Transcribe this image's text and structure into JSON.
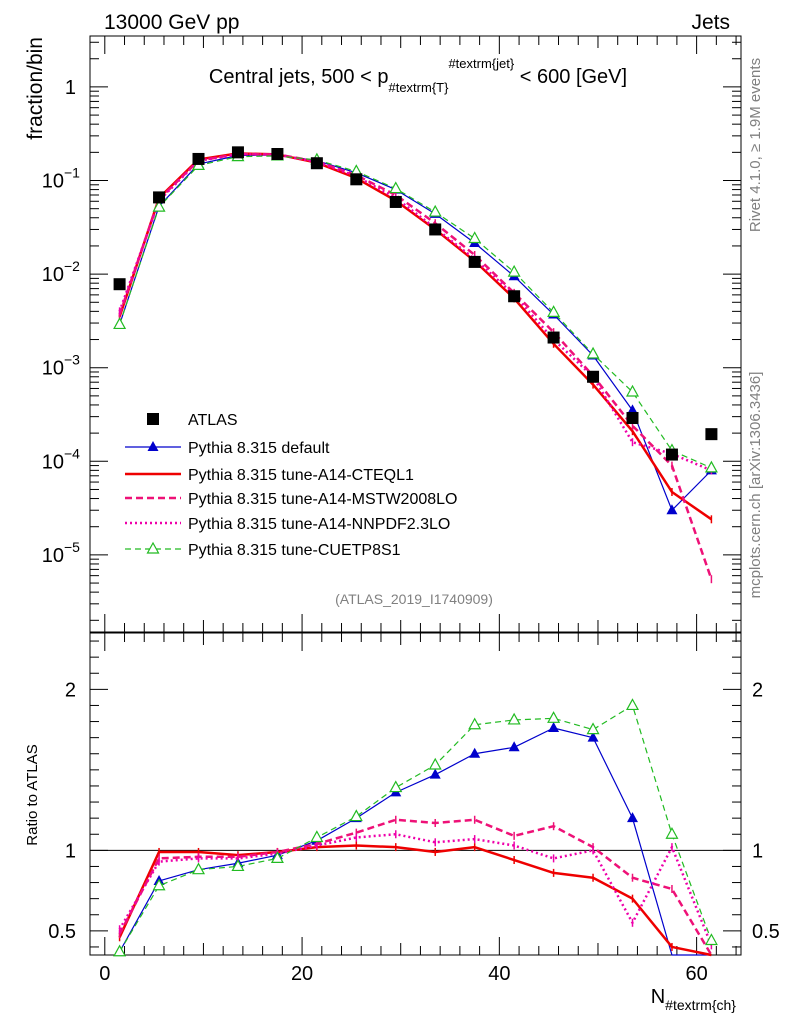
{
  "header": {
    "left": "13000 GeV pp",
    "right": "Jets",
    "side_rivet": "Rivet 4.1.0, ≥ 1.9M events",
    "side_mcplots": "mcplots.cern.ch [arXiv:1306.3436]",
    "analysis": "(ATLAS_2019_I1740909)"
  },
  "colors": {
    "data": "#000000",
    "default": "#0000cc",
    "cteql1": "#ee0000",
    "mstw": "#ee1177",
    "nnpdf": "#ee00aa",
    "cuetp8s1": "#22bb22"
  },
  "chart_data": [
    {
      "type": "line",
      "title": "Central jets, 500 < p_{#textrm{T}}^{#textrm{jet}} < 600 [GeV]",
      "title_parts": {
        "pre": "Central jets, 500 < p",
        "sub": "#textrm{T}",
        "sup": "#textrm{jet}",
        "post": " < 600 [GeV]"
      },
      "xlabel": "N_{#textrm{ch}}",
      "xlabel_parts": {
        "main": "N",
        "sub": "#textrm{ch}"
      },
      "ylabel": "fraction/bin",
      "yscale": "log",
      "ylim": [
        1.5e-06,
        3.5
      ],
      "xlim": [
        -1.5,
        64.5
      ],
      "x": [
        1.5,
        5.5,
        9.5,
        13.5,
        17.5,
        21.5,
        25.5,
        29.5,
        33.5,
        37.5,
        41.5,
        45.5,
        49.5,
        53.5,
        57.5,
        61.5
      ],
      "y_ticks": [
        {
          "value": 1e-05,
          "base": "10",
          "exp": "−5"
        },
        {
          "value": 0.0001,
          "base": "10",
          "exp": "−4"
        },
        {
          "value": 0.001,
          "base": "10",
          "exp": "−3"
        },
        {
          "value": 0.01,
          "base": "10",
          "exp": "−2"
        },
        {
          "value": 0.1,
          "base": "10",
          "exp": "−1"
        },
        {
          "value": 1,
          "base": "1",
          "exp": ""
        }
      ],
      "series": [
        {
          "name": "ATLAS",
          "key": "data",
          "style": "square",
          "values": [
            0.0078,
            0.066,
            0.17,
            0.2,
            0.192,
            0.153,
            0.103,
            0.059,
            0.03,
            0.0135,
            0.0058,
            0.0021,
            0.0008,
            0.00029,
            0.000118,
            0.000195
          ]
        },
        {
          "name": "Pythia 8.315 default",
          "key": "default",
          "style": "solid-triangle",
          "values": [
            0.0029,
            0.053,
            0.15,
            0.185,
            0.187,
            0.163,
            0.121,
            0.08,
            0.044,
            0.0215,
            0.0095,
            0.0037,
            0.00135,
            0.00035,
            3e-05,
            8e-05
          ]
        },
        {
          "name": "Pythia 8.315 tune-A14-CTEQL1",
          "key": "cteql1",
          "style": "solid",
          "values": [
            0.0035,
            0.065,
            0.168,
            0.195,
            0.19,
            0.155,
            0.106,
            0.061,
            0.03,
            0.0138,
            0.0055,
            0.0018,
            0.00066,
            0.00021,
            4.7e-05,
            2.4e-05
          ]
        },
        {
          "name": "Pythia 8.315 tune-A14-MSTW2008LO",
          "key": "mstw",
          "style": "dashed",
          "values": [
            0.0037,
            0.063,
            0.163,
            0.192,
            0.19,
            0.16,
            0.114,
            0.07,
            0.035,
            0.016,
            0.0063,
            0.0024,
            0.00082,
            0.00024,
            9e-05,
            5.5e-06
          ]
        },
        {
          "name": "Pythia 8.315 tune-A14-NNPDF2.3LO",
          "key": "nnpdf",
          "style": "dotted",
          "values": [
            0.004,
            0.061,
            0.162,
            0.191,
            0.189,
            0.158,
            0.111,
            0.065,
            0.031,
            0.0145,
            0.006,
            0.002,
            0.0008,
            0.00016,
            0.00012,
            8e-05
          ]
        },
        {
          "name": "Pythia 8.315 tune-CUETP8S1",
          "key": "cuetp8s1",
          "style": "dashed-open-triangle",
          "values": [
            0.0029,
            0.052,
            0.145,
            0.18,
            0.183,
            0.166,
            0.125,
            0.082,
            0.046,
            0.024,
            0.0105,
            0.0039,
            0.0014,
            0.00055,
            0.00013,
            8.5e-05
          ]
        }
      ]
    },
    {
      "type": "line",
      "title": "",
      "xlabel": "N_{#textrm{ch}}",
      "ylabel": "Ratio to ATLAS",
      "ylim": [
        0.35,
        2.35
      ],
      "xlim": [
        -1.5,
        64.5
      ],
      "x_ticks": [
        0,
        20,
        40,
        60
      ],
      "y_ticks": [
        0.5,
        1,
        2
      ],
      "x": [
        1.5,
        5.5,
        9.5,
        13.5,
        17.5,
        21.5,
        25.5,
        29.5,
        33.5,
        37.5,
        41.5,
        45.5,
        49.5,
        53.5,
        57.5,
        61.5
      ],
      "series": [
        {
          "name": "Pythia 8.315 default",
          "key": "default",
          "values": [
            0.37,
            0.81,
            0.88,
            0.92,
            0.97,
            1.06,
            1.2,
            1.36,
            1.47,
            1.6,
            1.64,
            1.76,
            1.7,
            1.2,
            0.26,
            0.34
          ]
        },
        {
          "name": "Pythia 8.315 tune-A14-CTEQL1",
          "key": "cteql1",
          "values": [
            0.46,
            0.99,
            0.99,
            0.97,
            0.99,
            1.02,
            1.03,
            1.02,
            0.99,
            1.02,
            0.94,
            0.86,
            0.83,
            0.7,
            0.4,
            0.12
          ]
        },
        {
          "name": "Pythia 8.315 tune-A14-MSTW2008LO",
          "key": "mstw",
          "values": [
            0.48,
            0.95,
            0.96,
            0.96,
            0.99,
            1.04,
            1.11,
            1.19,
            1.17,
            1.19,
            1.09,
            1.15,
            1.02,
            0.83,
            0.76,
            0.03
          ]
        },
        {
          "name": "Pythia 8.315 tune-A14-NNPDF2.3LO",
          "key": "nnpdf",
          "values": [
            0.51,
            0.93,
            0.95,
            0.95,
            0.98,
            1.03,
            1.08,
            1.1,
            1.05,
            1.07,
            1.03,
            0.95,
            1.0,
            0.55,
            1.02,
            0.41
          ]
        },
        {
          "name": "Pythia 8.315 tune-CUETP8S1",
          "key": "cuetp8s1",
          "values": [
            0.37,
            0.78,
            0.88,
            0.9,
            0.95,
            1.08,
            1.21,
            1.39,
            1.53,
            1.78,
            1.81,
            1.82,
            1.75,
            1.9,
            1.1,
            0.44
          ]
        }
      ]
    }
  ]
}
